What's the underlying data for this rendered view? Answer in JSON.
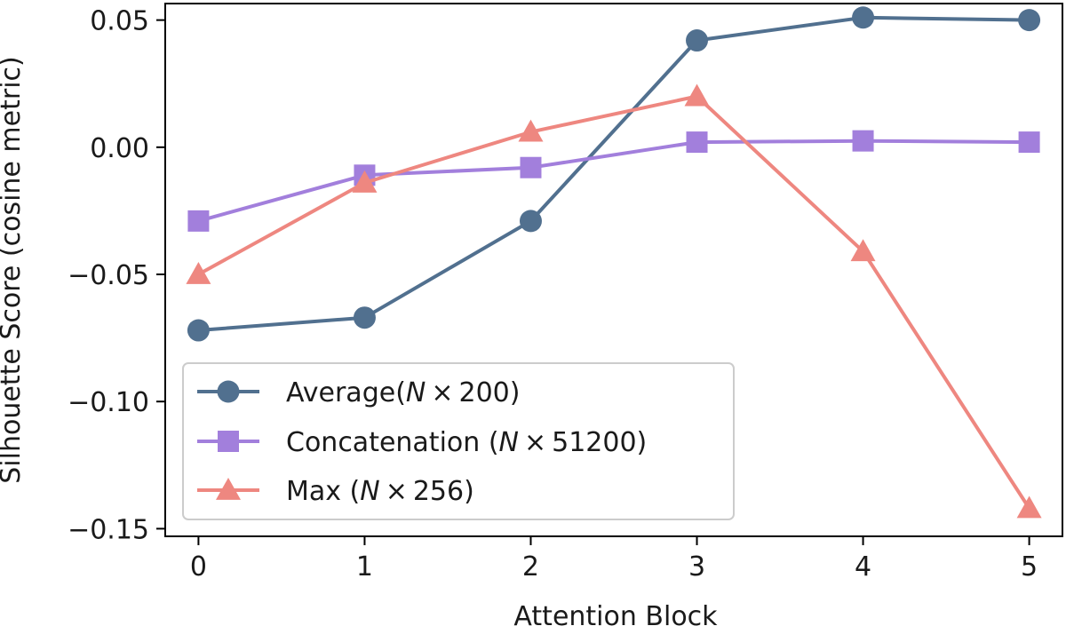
{
  "chart_data": {
    "type": "line",
    "title": "",
    "xlabel": "Attention Block",
    "ylabel": "Silhouette Score (cosine metric)",
    "x": [
      0,
      1,
      2,
      3,
      4,
      5
    ],
    "xlim": [
      -0.2,
      5.2
    ],
    "ylim": [
      -0.153,
      0.0565
    ],
    "xticks": [
      0,
      1,
      2,
      3,
      4,
      5
    ],
    "xtick_labels": [
      "0",
      "1",
      "2",
      "3",
      "4",
      "5"
    ],
    "yticks": [
      -0.15,
      -0.1,
      -0.05,
      0.0,
      0.05
    ],
    "ytick_labels": [
      "−0.15",
      "−0.10",
      "−0.05",
      "0.00",
      "0.05"
    ],
    "grid": false,
    "legend_position": "lower-left",
    "series": [
      {
        "name": "Average(N × 200)",
        "label_pre": "Average(",
        "label_var": "N",
        "label_post": " × 200)",
        "color": "#51708f",
        "marker": "circle",
        "values": [
          -0.072,
          -0.067,
          -0.029,
          0.042,
          0.051,
          0.05
        ]
      },
      {
        "name": "Concatenation (N × 51200)",
        "label_pre": "Concatenation (",
        "label_var": "N",
        "label_post": " × 51200)",
        "color": "#a27fdc",
        "marker": "square",
        "values": [
          -0.029,
          -0.011,
          -0.008,
          0.002,
          0.0025,
          0.002
        ]
      },
      {
        "name": "Max (N × 256)",
        "label_pre": "Max (",
        "label_var": "N",
        "label_post": " × 256)",
        "color": "#ee8780",
        "marker": "triangle",
        "values": [
          -0.05,
          -0.014,
          0.006,
          0.02,
          -0.041,
          -0.142
        ]
      }
    ]
  }
}
